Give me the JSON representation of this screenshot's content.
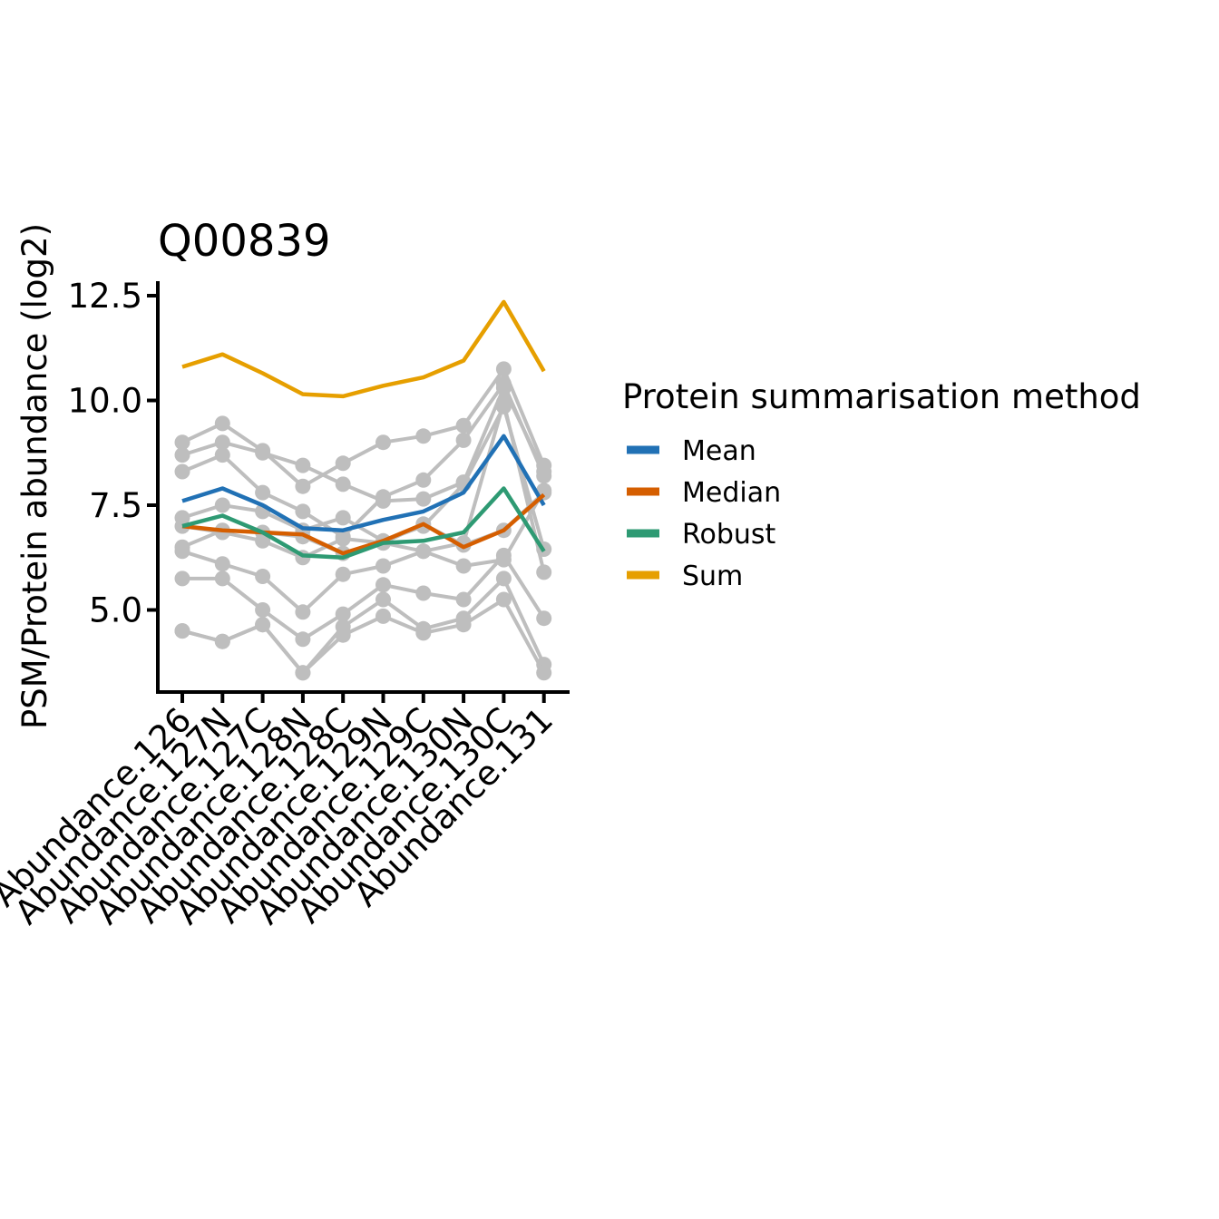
{
  "chart_data": {
    "type": "line",
    "title": "Q00839",
    "xlabel": "",
    "ylabel": "PSM/Protein abundance (log2)",
    "ylim": [
      3.0,
      12.8
    ],
    "yticks": [
      5.0,
      7.5,
      10.0,
      12.5
    ],
    "ytick_labels": [
      "5.0",
      "7.5",
      "10.0",
      "12.5"
    ],
    "grid": false,
    "legend_position": "right",
    "categories": [
      "Abundance.126",
      "Abundance.127N",
      "Abundance.127C",
      "Abundance.128N",
      "Abundance.128C",
      "Abundance.129N",
      "Abundance.129C",
      "Abundance.130N",
      "Abundance.130C",
      "Abundance.131"
    ],
    "psm_color": "#bebebe",
    "psm_series": [
      [
        9.0,
        9.45,
        8.8,
        7.95,
        8.5,
        9.0,
        9.15,
        9.4,
        10.75,
        8.45
      ],
      [
        8.7,
        9.0,
        8.75,
        8.45,
        8.0,
        7.6,
        7.65,
        8.05,
        10.3,
        8.3
      ],
      [
        8.3,
        8.7,
        7.8,
        7.35,
        6.75,
        7.7,
        8.1,
        9.05,
        10.4,
        8.2
      ],
      [
        7.2,
        7.5,
        7.35,
        6.9,
        7.2,
        6.65,
        7.0,
        8.0,
        9.85,
        6.45
      ],
      [
        7.0,
        6.85,
        6.65,
        6.25,
        6.7,
        6.6,
        6.4,
        6.6,
        9.95,
        5.9
      ],
      [
        6.5,
        6.9,
        6.85,
        6.75,
        6.35,
        6.6,
        7.05,
        6.55,
        6.9,
        7.8
      ],
      [
        6.4,
        6.1,
        5.8,
        4.95,
        5.85,
        6.05,
        6.4,
        6.05,
        6.2,
        7.85
      ],
      [
        5.75,
        5.75,
        5.0,
        4.3,
        4.9,
        5.6,
        5.4,
        5.25,
        6.3,
        4.8
      ],
      [
        4.5,
        4.25,
        4.65,
        3.5,
        4.6,
        5.25,
        4.55,
        4.8,
        5.75,
        3.7
      ],
      [
        4.5,
        4.25,
        4.65,
        3.5,
        4.4,
        4.85,
        4.45,
        4.65,
        5.25,
        3.5
      ]
    ],
    "series": [
      {
        "name": "Mean",
        "color": "#2171b5",
        "values": [
          7.6,
          7.9,
          7.5,
          6.95,
          6.9,
          7.15,
          7.35,
          7.8,
          9.15,
          7.5
        ]
      },
      {
        "name": "Median",
        "color": "#d55e00",
        "values": [
          7.0,
          6.9,
          6.85,
          6.8,
          6.35,
          6.65,
          7.05,
          6.5,
          6.9,
          7.75
        ]
      },
      {
        "name": "Robust",
        "color": "#2e9a73",
        "values": [
          7.0,
          7.25,
          6.85,
          6.3,
          6.25,
          6.6,
          6.65,
          6.85,
          7.9,
          6.4
        ]
      },
      {
        "name": "Sum",
        "color": "#e69f00",
        "values": [
          10.8,
          11.1,
          10.65,
          10.15,
          10.1,
          10.35,
          10.55,
          10.95,
          12.35,
          10.7
        ]
      }
    ],
    "legend_title": "Protein summarisation method"
  }
}
